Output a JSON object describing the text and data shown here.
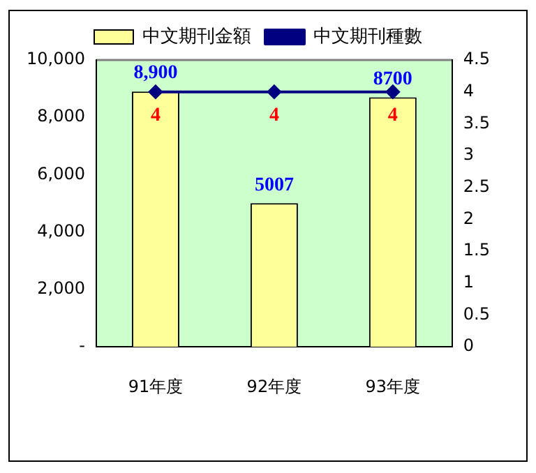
{
  "chart_data": {
    "type": "bar",
    "categories": [
      "91年度",
      "92年度",
      "93年度"
    ],
    "series": [
      {
        "name": "中文期刊金額",
        "color": "#ffff99",
        "values": [
          8900,
          5007,
          8700
        ],
        "value_labels": [
          "8,900",
          "5007",
          "8700"
        ]
      },
      {
        "name": "中文期刊種數",
        "type": "line",
        "axis": "y2",
        "color": "#000080",
        "values": [
          4,
          4,
          4
        ],
        "value_labels": [
          "4",
          "4",
          "4"
        ]
      }
    ],
    "ylim": [
      0,
      10000
    ],
    "yticks": [
      {
        "value": 0,
        "label": "-"
      },
      {
        "value": 2000,
        "label": "2,000"
      },
      {
        "value": 4000,
        "label": "4,000"
      },
      {
        "value": 6000,
        "label": "6,000"
      },
      {
        "value": 8000,
        "label": "8,000"
      },
      {
        "value": 10000,
        "label": "10,000"
      }
    ],
    "y2lim": [
      0,
      4.5
    ],
    "y2ticks": [
      0,
      0.5,
      1,
      1.5,
      2,
      2.5,
      3,
      3.5,
      4,
      4.5
    ],
    "legend": "top",
    "grid": false,
    "marker": "diamond",
    "line_style": "solid"
  }
}
